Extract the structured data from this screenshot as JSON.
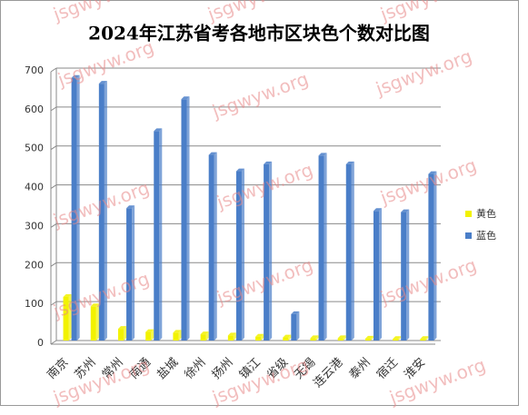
{
  "chart_data": {
    "type": "bar",
    "title": "2024年江苏省考各地市区块色个数对比图",
    "categories": [
      "南京",
      "苏州",
      "常州",
      "南通",
      "盐城",
      "徐州",
      "扬州",
      "镇江",
      "省级",
      "无锡",
      "连云港",
      "泰州",
      "宿迁",
      "淮安"
    ],
    "series": [
      {
        "name": "黄色",
        "color": "#f2f200",
        "values": [
          112,
          88,
          30,
          22,
          20,
          16,
          13,
          10,
          8,
          6,
          6,
          5,
          4,
          4
        ]
      },
      {
        "name": "蓝色",
        "color": "#4a7ec8",
        "values": [
          675,
          660,
          340,
          538,
          620,
          477,
          435,
          453,
          68,
          475,
          453,
          333,
          330,
          428
        ]
      }
    ],
    "ylim": [
      0,
      700
    ],
    "yticks": [
      0,
      100,
      200,
      300,
      400,
      500,
      600,
      700
    ],
    "grid": true,
    "legend": "right",
    "watermark": "jsgwyw.org"
  }
}
